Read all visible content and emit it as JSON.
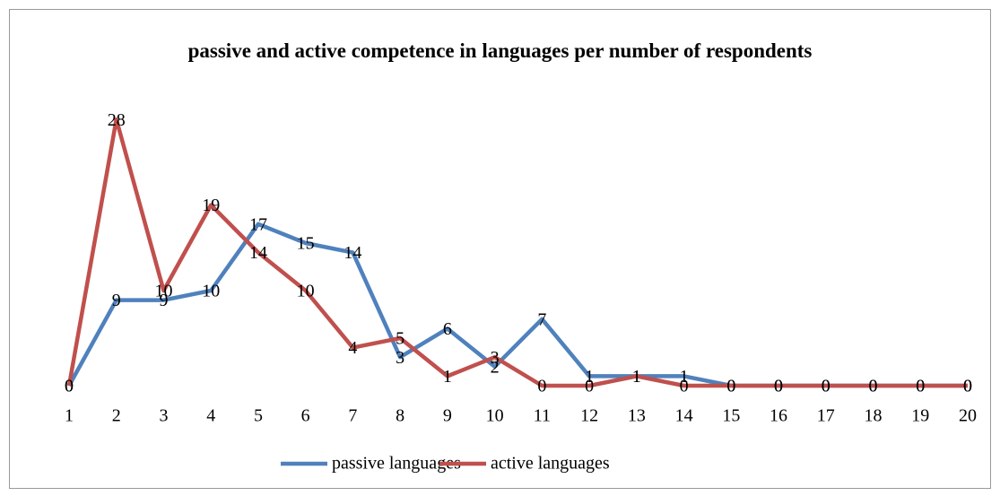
{
  "chart_data": {
    "type": "line",
    "title": "passive and active competence in languages per number of respondents",
    "categories": [
      1,
      2,
      3,
      4,
      5,
      6,
      7,
      8,
      9,
      10,
      11,
      12,
      13,
      14,
      15,
      16,
      17,
      18,
      19,
      20
    ],
    "series": [
      {
        "name": "passive languages",
        "color": "#4f81bd",
        "values": [
          0,
          9,
          9,
          10,
          17,
          15,
          14,
          3,
          6,
          2,
          7,
          1,
          1,
          1,
          0,
          0,
          0,
          0,
          0,
          0
        ]
      },
      {
        "name": "active languages",
        "color": "#c0504d",
        "values": [
          0,
          28,
          10,
          19,
          14,
          10,
          4,
          5,
          1,
          3,
          0,
          0,
          1,
          0,
          0,
          0,
          0,
          0,
          0,
          0
        ]
      }
    ],
    "legend": "bottom"
  }
}
